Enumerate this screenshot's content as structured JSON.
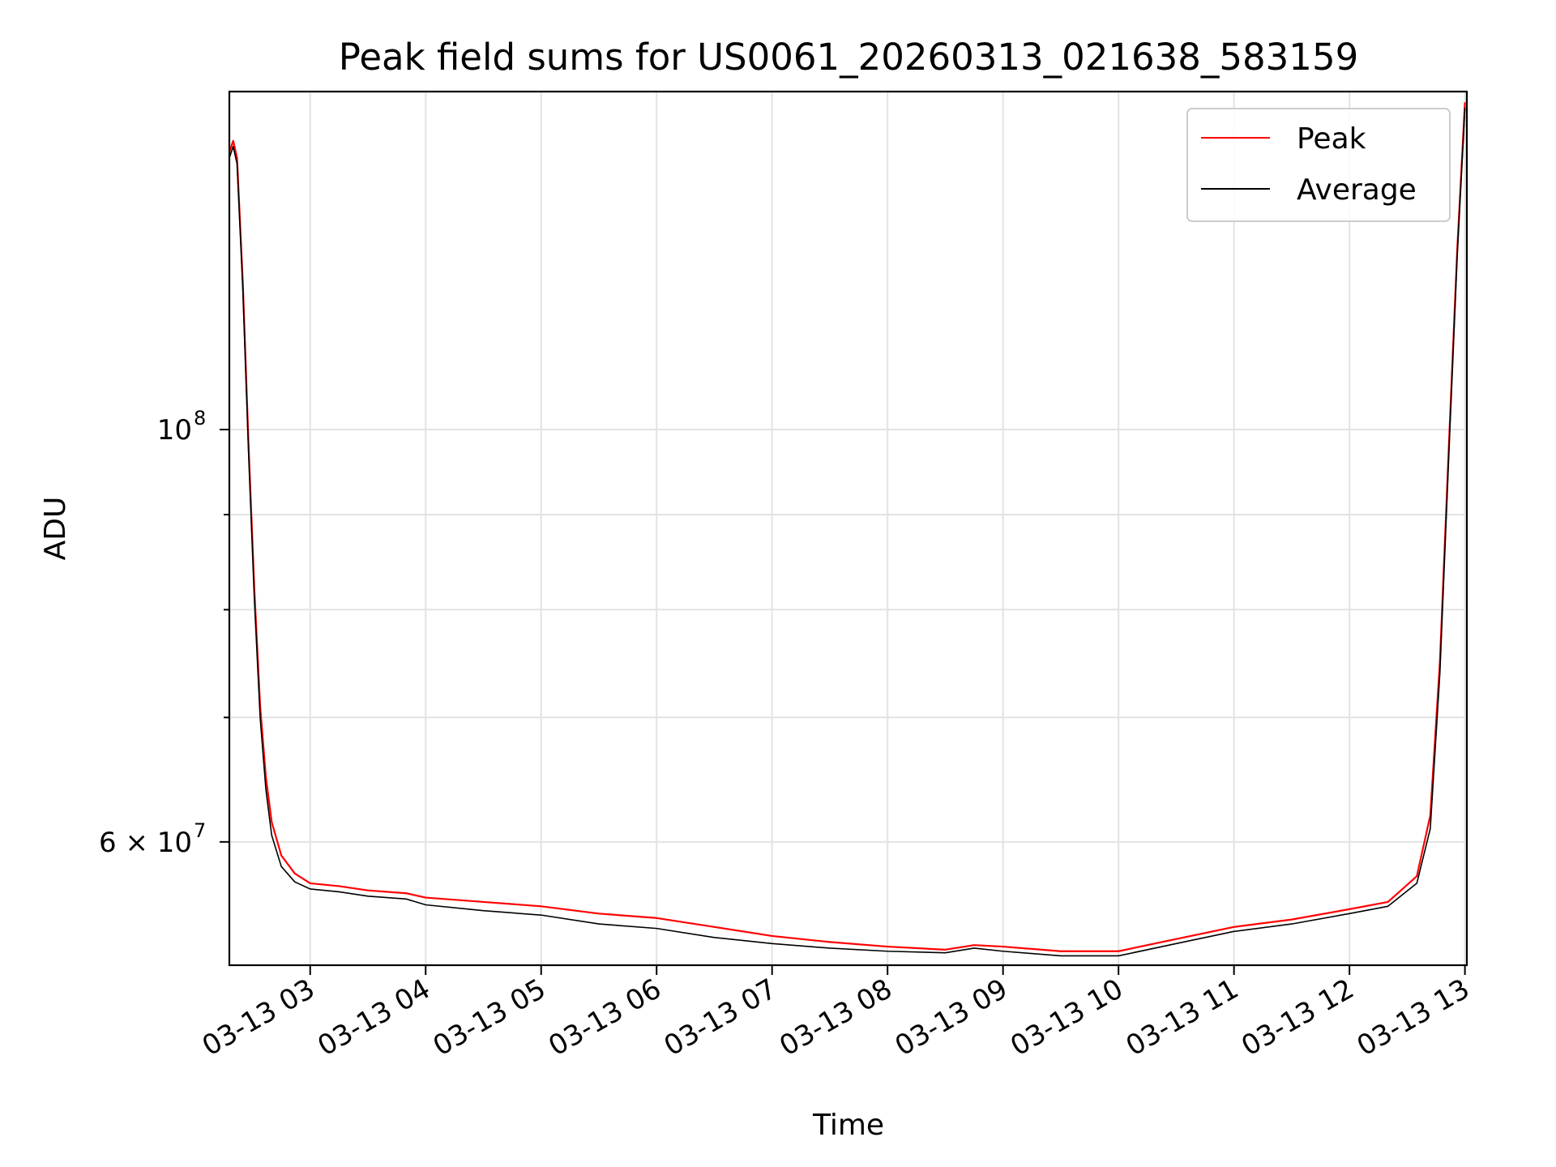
{
  "chart_data": {
    "type": "line",
    "title": "Peak field sums for US0061_20260313_021638_583159",
    "xlabel": "Time",
    "ylabel": "ADU",
    "yscale": "log",
    "x_range": [
      "2026-03-13 02:18",
      "2026-03-13 13:01"
    ],
    "ylim": [
      51500000,
      152000000
    ],
    "x_ticks": [
      {
        "t": "2026-03-13 03:00",
        "label": "03-13 03"
      },
      {
        "t": "2026-03-13 04:00",
        "label": "03-13 04"
      },
      {
        "t": "2026-03-13 05:00",
        "label": "03-13 05"
      },
      {
        "t": "2026-03-13 06:00",
        "label": "03-13 06"
      },
      {
        "t": "2026-03-13 07:00",
        "label": "03-13 07"
      },
      {
        "t": "2026-03-13 08:00",
        "label": "03-13 08"
      },
      {
        "t": "2026-03-13 09:00",
        "label": "03-13 09"
      },
      {
        "t": "2026-03-13 10:00",
        "label": "03-13 10"
      },
      {
        "t": "2026-03-13 11:00",
        "label": "03-13 11"
      },
      {
        "t": "2026-03-13 12:00",
        "label": "03-13 12"
      },
      {
        "t": "2026-03-13 13:00",
        "label": "03-13 13"
      }
    ],
    "y_major_ticks": [
      {
        "v": 100000000,
        "base": "10",
        "exp": "8"
      },
      {
        "v": 60000000,
        "base": "6 × 10",
        "exp": "7"
      }
    ],
    "y_minor_ticks": [
      70000000,
      80000000,
      90000000
    ],
    "grid": true,
    "legend_position": "top-right",
    "series": [
      {
        "name": "Peak",
        "color": "#ff0000",
        "points": [
          [
            "2026-03-13 02:18",
            141000000
          ],
          [
            "2026-03-13 02:20",
            143000000
          ],
          [
            "2026-03-13 02:22",
            140000000
          ],
          [
            "2026-03-13 02:25",
            120000000
          ],
          [
            "2026-03-13 02:28",
            98000000
          ],
          [
            "2026-03-13 02:31",
            82000000
          ],
          [
            "2026-03-13 02:34",
            71000000
          ],
          [
            "2026-03-13 02:37",
            65000000
          ],
          [
            "2026-03-13 02:40",
            61500000
          ],
          [
            "2026-03-13 02:45",
            59000000
          ],
          [
            "2026-03-13 02:52",
            57700000
          ],
          [
            "2026-03-13 03:00",
            57000000
          ],
          [
            "2026-03-13 03:15",
            56800000
          ],
          [
            "2026-03-13 03:30",
            56500000
          ],
          [
            "2026-03-13 03:50",
            56300000
          ],
          [
            "2026-03-13 04:00",
            56000000
          ],
          [
            "2026-03-13 04:30",
            55700000
          ],
          [
            "2026-03-13 05:00",
            55400000
          ],
          [
            "2026-03-13 05:30",
            54900000
          ],
          [
            "2026-03-13 06:00",
            54600000
          ],
          [
            "2026-03-13 06:30",
            54000000
          ],
          [
            "2026-03-13 07:00",
            53400000
          ],
          [
            "2026-03-13 07:30",
            53000000
          ],
          [
            "2026-03-13 08:00",
            52700000
          ],
          [
            "2026-03-13 08:30",
            52500000
          ],
          [
            "2026-03-13 08:45",
            52800000
          ],
          [
            "2026-03-13 09:00",
            52700000
          ],
          [
            "2026-03-13 09:30",
            52400000
          ],
          [
            "2026-03-13 10:00",
            52400000
          ],
          [
            "2026-03-13 10:30",
            53200000
          ],
          [
            "2026-03-13 11:00",
            54000000
          ],
          [
            "2026-03-13 11:30",
            54500000
          ],
          [
            "2026-03-13 12:00",
            55200000
          ],
          [
            "2026-03-13 12:20",
            55700000
          ],
          [
            "2026-03-13 12:35",
            57500000
          ],
          [
            "2026-03-13 12:42",
            62000000
          ],
          [
            "2026-03-13 12:47",
            75000000
          ],
          [
            "2026-03-13 12:52",
            100000000
          ],
          [
            "2026-03-13 12:56",
            125000000
          ],
          [
            "2026-03-13 13:00",
            150000000
          ]
        ]
      },
      {
        "name": "Average",
        "color": "#000000",
        "points": [
          [
            "2026-03-13 02:18",
            140000000
          ],
          [
            "2026-03-13 02:20",
            142000000
          ],
          [
            "2026-03-13 02:22",
            139000000
          ],
          [
            "2026-03-13 02:25",
            119000000
          ],
          [
            "2026-03-13 02:28",
            97000000
          ],
          [
            "2026-03-13 02:31",
            81000000
          ],
          [
            "2026-03-13 02:34",
            70000000
          ],
          [
            "2026-03-13 02:37",
            64000000
          ],
          [
            "2026-03-13 02:40",
            60500000
          ],
          [
            "2026-03-13 02:45",
            58200000
          ],
          [
            "2026-03-13 02:52",
            57100000
          ],
          [
            "2026-03-13 03:00",
            56600000
          ],
          [
            "2026-03-13 03:15",
            56400000
          ],
          [
            "2026-03-13 03:30",
            56100000
          ],
          [
            "2026-03-13 03:50",
            55900000
          ],
          [
            "2026-03-13 04:00",
            55500000
          ],
          [
            "2026-03-13 04:30",
            55100000
          ],
          [
            "2026-03-13 05:00",
            54800000
          ],
          [
            "2026-03-13 05:30",
            54200000
          ],
          [
            "2026-03-13 06:00",
            53900000
          ],
          [
            "2026-03-13 06:30",
            53300000
          ],
          [
            "2026-03-13 07:00",
            52900000
          ],
          [
            "2026-03-13 07:30",
            52600000
          ],
          [
            "2026-03-13 08:00",
            52400000
          ],
          [
            "2026-03-13 08:30",
            52300000
          ],
          [
            "2026-03-13 08:45",
            52600000
          ],
          [
            "2026-03-13 09:00",
            52400000
          ],
          [
            "2026-03-13 09:30",
            52100000
          ],
          [
            "2026-03-13 10:00",
            52100000
          ],
          [
            "2026-03-13 10:30",
            52900000
          ],
          [
            "2026-03-13 11:00",
            53700000
          ],
          [
            "2026-03-13 11:30",
            54200000
          ],
          [
            "2026-03-13 12:00",
            54900000
          ],
          [
            "2026-03-13 12:20",
            55400000
          ],
          [
            "2026-03-13 12:35",
            57000000
          ],
          [
            "2026-03-13 12:42",
            61000000
          ],
          [
            "2026-03-13 12:47",
            74000000
          ],
          [
            "2026-03-13 12:52",
            99000000
          ],
          [
            "2026-03-13 12:56",
            124000000
          ],
          [
            "2026-03-13 13:00",
            149000000
          ]
        ]
      }
    ]
  }
}
